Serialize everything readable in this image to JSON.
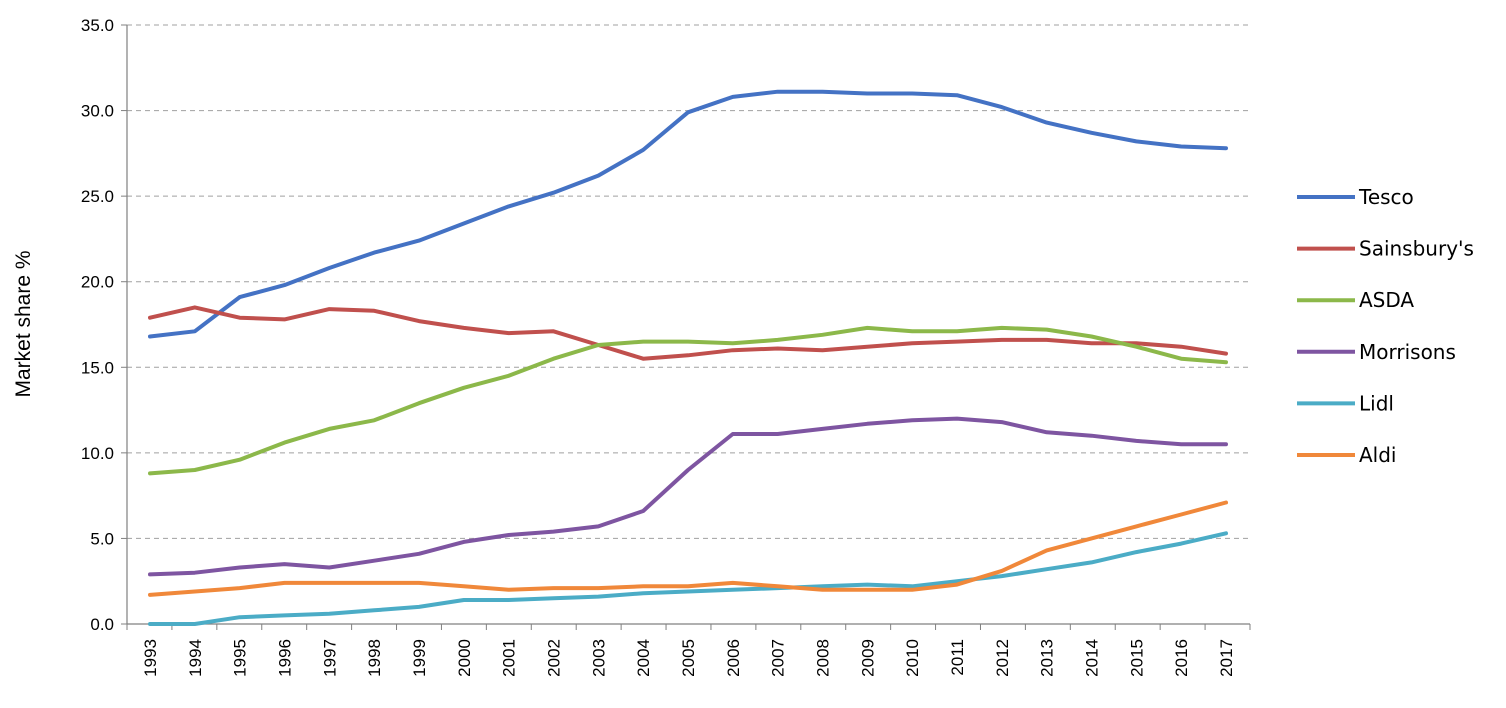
{
  "chart_data": {
    "type": "line",
    "title": "",
    "xlabel": "",
    "ylabel": "Market share %",
    "ylim": [
      0,
      35
    ],
    "yticks": [
      "0.0",
      "5.0",
      "10.0",
      "15.0",
      "20.0",
      "25.0",
      "30.0",
      "35.0"
    ],
    "grid": "horizontal dashed",
    "legend_position": "right",
    "x": [
      "1993",
      "1994",
      "1995",
      "1996",
      "1997",
      "1998",
      "1999",
      "2000",
      "2001",
      "2002",
      "2003",
      "2004",
      "2005",
      "2006",
      "2007",
      "2008",
      "2009",
      "2010",
      "2011",
      "2012",
      "2013",
      "2014",
      "2015",
      "2016",
      "2017"
    ],
    "series": [
      {
        "name": "Tesco",
        "color": "#4472C4",
        "values": [
          16.8,
          17.1,
          19.1,
          19.8,
          20.8,
          21.7,
          22.4,
          23.4,
          24.4,
          25.2,
          26.2,
          27.7,
          29.9,
          30.8,
          31.1,
          31.1,
          31.0,
          31.0,
          30.9,
          30.2,
          29.3,
          28.7,
          28.2,
          27.9,
          27.8
        ]
      },
      {
        "name": "Sainsbury's",
        "color": "#C0504D",
        "values": [
          17.9,
          18.5,
          17.9,
          17.8,
          18.4,
          18.3,
          17.7,
          17.3,
          17.0,
          17.1,
          16.3,
          15.5,
          15.7,
          16.0,
          16.1,
          16.0,
          16.2,
          16.4,
          16.5,
          16.6,
          16.6,
          16.4,
          16.4,
          16.2,
          15.8
        ]
      },
      {
        "name": "ASDA",
        "color": "#8CB84A",
        "values": [
          8.8,
          9.0,
          9.6,
          10.6,
          11.4,
          11.9,
          12.9,
          13.8,
          14.5,
          15.5,
          16.3,
          16.5,
          16.5,
          16.4,
          16.6,
          16.9,
          17.3,
          17.1,
          17.1,
          17.3,
          17.2,
          16.8,
          16.2,
          15.5,
          15.3
        ]
      },
      {
        "name": "Morrisons",
        "color": "#7E55A1",
        "values": [
          2.9,
          3.0,
          3.3,
          3.5,
          3.3,
          3.7,
          4.1,
          4.8,
          5.2,
          5.4,
          5.7,
          6.6,
          9.0,
          11.1,
          11.1,
          11.4,
          11.7,
          11.9,
          12.0,
          11.8,
          11.2,
          11.0,
          10.7,
          10.5,
          10.5
        ]
      },
      {
        "name": "Lidl",
        "color": "#4BACC6",
        "values": [
          0.0,
          0.0,
          0.4,
          0.5,
          0.6,
          0.8,
          1.0,
          1.4,
          1.4,
          1.5,
          1.6,
          1.8,
          1.9,
          2.0,
          2.1,
          2.2,
          2.3,
          2.2,
          2.5,
          2.8,
          3.2,
          3.6,
          4.2,
          4.7,
          5.3
        ]
      },
      {
        "name": "Aldi",
        "color": "#F0883A",
        "values": [
          1.7,
          1.9,
          2.1,
          2.4,
          2.4,
          2.4,
          2.4,
          2.2,
          2.0,
          2.1,
          2.1,
          2.2,
          2.2,
          2.4,
          2.2,
          2.0,
          2.0,
          2.0,
          2.3,
          3.1,
          4.3,
          5.0,
          5.7,
          6.4,
          7.1
        ]
      }
    ]
  }
}
